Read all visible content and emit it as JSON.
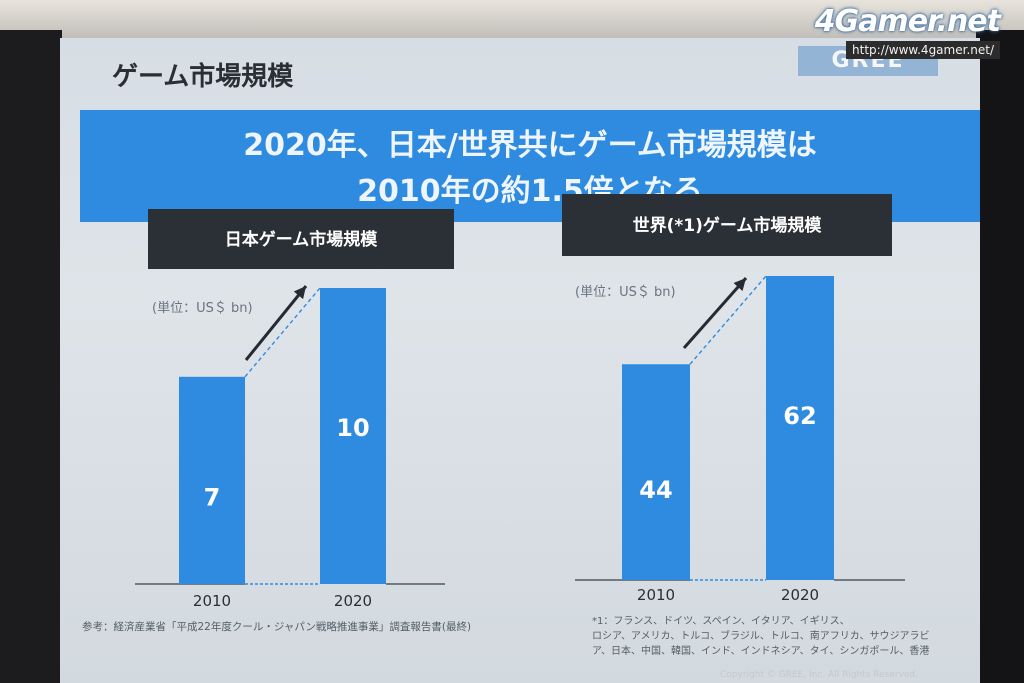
{
  "slide": {
    "title": "ゲーム市場規模",
    "brand": "GREE",
    "headline_line1": "2020年、日本/世界共にゲーム市場規模は",
    "headline_line2": "2010年の約1.5倍となる",
    "source_note": "参考：経済産業省「平成22年度クール・ジャパン戦略推進事業」調査報告書(最終)",
    "footnote_lines": [
      "*1：フランス、ドイツ、スペイン、イタリア、イギリス、",
      "ロシア、アメリカ、トルコ、ブラジル、トルコ、南アフリカ、サウジアラビ",
      "ア、日本、中国、韓国、インド、インドネシア、タイ、シンガポール、香港"
    ],
    "copyright": "Copyright © GREE, Inc. All Rights Reserved."
  },
  "watermark": {
    "logo": "4Gamer.net",
    "url": "http://www.4gamer.net/"
  },
  "colors": {
    "bar": "#2f8be0",
    "banner": "#2f8be0",
    "label_box": "#2b2f36",
    "arrow": "#252a33"
  },
  "chart_data": [
    {
      "type": "bar",
      "title": "日本ゲーム市場規模",
      "unit_label": "(単位：US＄ bn)",
      "categories": [
        "2010",
        "2020"
      ],
      "values": [
        7,
        10
      ]
    },
    {
      "type": "bar",
      "title": "世界(*1)ゲーム市場規模",
      "unit_label": "(単位：US＄ bn)",
      "categories": [
        "2010",
        "2020"
      ],
      "values": [
        44,
        62
      ]
    }
  ]
}
